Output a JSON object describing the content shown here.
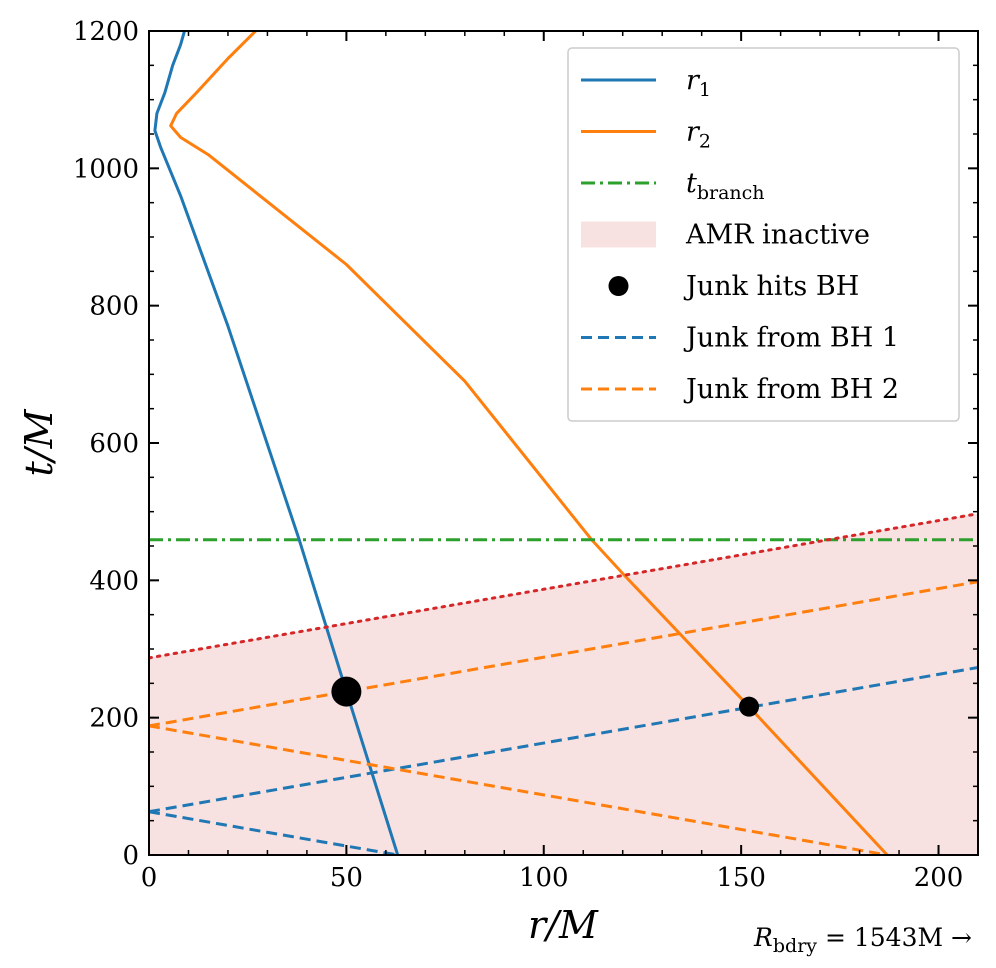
{
  "chart_data": {
    "type": "line",
    "xlabel": "r/M",
    "ylabel": "t/M",
    "xlim": [
      0,
      210
    ],
    "ylim": [
      0,
      1200
    ],
    "xticks": [
      0,
      50,
      100,
      150,
      200
    ],
    "yticks": [
      0,
      200,
      400,
      600,
      800,
      1000,
      1200
    ],
    "xtick_labels": [
      "0",
      "50",
      "100",
      "150",
      "200"
    ],
    "ytick_labels": [
      "0",
      "200",
      "400",
      "600",
      "800",
      "1000",
      "1200"
    ],
    "annotation": "R_bdry = 1543M →",
    "annotation_parts": {
      "symbol": "R",
      "subscript": "bdry",
      "rest": " = 1543M →"
    },
    "legend_position": "upper-right",
    "amr_inactive_region": {
      "lower_boundary": [
        [
          0,
          0
        ],
        [
          210,
          0
        ]
      ],
      "upper_boundary": [
        [
          0,
          287
        ],
        [
          210,
          497
        ]
      ]
    },
    "series": [
      {
        "name": "r_1",
        "label_symbol": "r",
        "label_sub": "1",
        "color": "#1f77b4",
        "style": "solid",
        "points": [
          [
            63,
            0
          ],
          [
            50,
            238
          ],
          [
            38,
            460
          ],
          [
            20,
            770
          ],
          [
            8,
            960
          ],
          [
            3,
            1030
          ],
          [
            1.5,
            1055
          ],
          [
            2,
            1080
          ],
          [
            4,
            1110
          ],
          [
            6,
            1150
          ],
          [
            8,
            1180
          ],
          [
            9,
            1200
          ]
        ]
      },
      {
        "name": "r_2",
        "label_symbol": "r",
        "label_sub": "2",
        "color": "#ff7f0e",
        "style": "solid",
        "points": [
          [
            187,
            0
          ],
          [
            152,
            216
          ],
          [
            120,
            410
          ],
          [
            112,
            460
          ],
          [
            80,
            690
          ],
          [
            50,
            860
          ],
          [
            15,
            1020
          ],
          [
            8,
            1045
          ],
          [
            5.5,
            1062
          ],
          [
            7,
            1080
          ],
          [
            12,
            1110
          ],
          [
            20,
            1160
          ],
          [
            27,
            1200
          ]
        ]
      },
      {
        "name": "t_branch",
        "label_symbol": "t",
        "label_sub": "branch",
        "color": "#2ca02c",
        "style": "dashdot",
        "points": [
          [
            0,
            459
          ],
          [
            210,
            459
          ]
        ]
      },
      {
        "name": "junk-bh1-outgoing",
        "color": "#1f77b4",
        "style": "dashed",
        "points": [
          [
            0,
            63
          ],
          [
            210,
            273
          ]
        ]
      },
      {
        "name": "junk-bh1-ingoing",
        "color": "#1f77b4",
        "style": "dashed",
        "points": [
          [
            0,
            63
          ],
          [
            63,
            0
          ]
        ]
      },
      {
        "name": "junk-bh2-outgoing",
        "color": "#ff7f0e",
        "style": "dashed",
        "points": [
          [
            0,
            188
          ],
          [
            210,
            398
          ]
        ]
      },
      {
        "name": "junk-bh2-ingoing",
        "color": "#ff7f0e",
        "style": "dashed",
        "points": [
          [
            0,
            188
          ],
          [
            187,
            0
          ]
        ]
      },
      {
        "name": "amr-boundary",
        "color": "#d62728",
        "style": "dotted",
        "points": [
          [
            0,
            287
          ],
          [
            210,
            497
          ]
        ]
      }
    ],
    "markers": [
      {
        "name": "junk-hits-bh1",
        "x": 50,
        "y": 238,
        "size": "large",
        "color": "#000000"
      },
      {
        "name": "junk-hits-bh2",
        "x": 152,
        "y": 216,
        "size": "small",
        "color": "#000000"
      }
    ],
    "legend": [
      {
        "kind": "line",
        "symbol": "r",
        "sub": "1",
        "text": "",
        "color": "#1f77b4",
        "style": "solid"
      },
      {
        "kind": "line",
        "symbol": "r",
        "sub": "2",
        "text": "",
        "color": "#ff7f0e",
        "style": "solid"
      },
      {
        "kind": "line",
        "symbol": "t",
        "sub": "branch",
        "text": "",
        "color": "#2ca02c",
        "style": "dashdot"
      },
      {
        "kind": "patch",
        "symbol": "",
        "sub": "",
        "text": "AMR inactive",
        "color": "#f8e1e1",
        "style": "fill"
      },
      {
        "kind": "marker",
        "symbol": "",
        "sub": "",
        "text": "Junk hits BH",
        "color": "#000000",
        "style": "dot"
      },
      {
        "kind": "line",
        "symbol": "",
        "sub": "",
        "text": "Junk from BH 1",
        "color": "#1f77b4",
        "style": "dashed"
      },
      {
        "kind": "line",
        "symbol": "",
        "sub": "",
        "text": "Junk from BH 2",
        "color": "#ff7f0e",
        "style": "dashed"
      }
    ]
  }
}
